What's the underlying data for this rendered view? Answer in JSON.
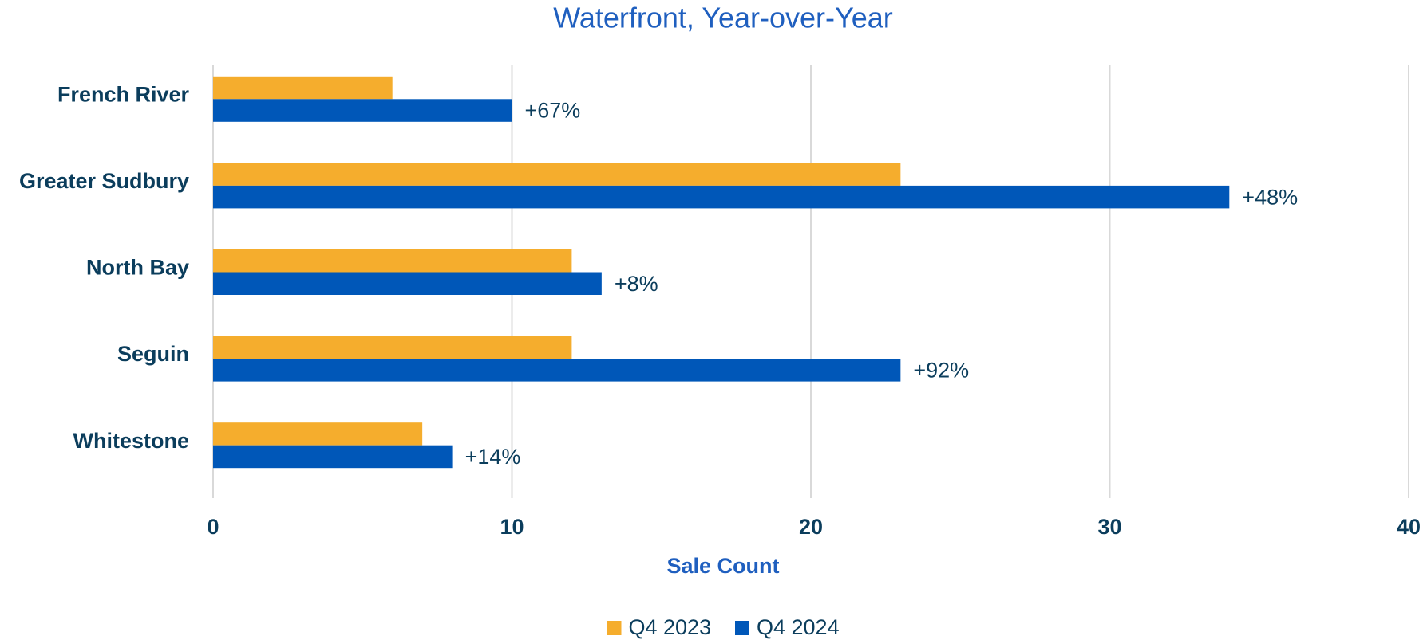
{
  "chart_data": {
    "type": "bar",
    "orientation": "horizontal",
    "title": "Waterfront, Year-over-Year",
    "x_label": "Sale Count",
    "categories": [
      "French River",
      "Greater Sudbury",
      "North Bay",
      "Seguin",
      "Whitestone"
    ],
    "series": [
      {
        "name": "Q4 2023",
        "color": "#F5AD2D",
        "values": [
          6,
          23,
          12,
          12,
          7
        ]
      },
      {
        "name": "Q4 2024",
        "color": "#0057B8",
        "values": [
          10,
          34,
          13,
          23,
          8
        ],
        "change_labels": [
          "+67%",
          "+48%",
          "+8%",
          "+92%",
          "+14%"
        ]
      }
    ],
    "xlim": [
      0,
      40
    ],
    "xticks": [
      0,
      10,
      20,
      30,
      40
    ],
    "grid": true,
    "legend": "bottom"
  }
}
